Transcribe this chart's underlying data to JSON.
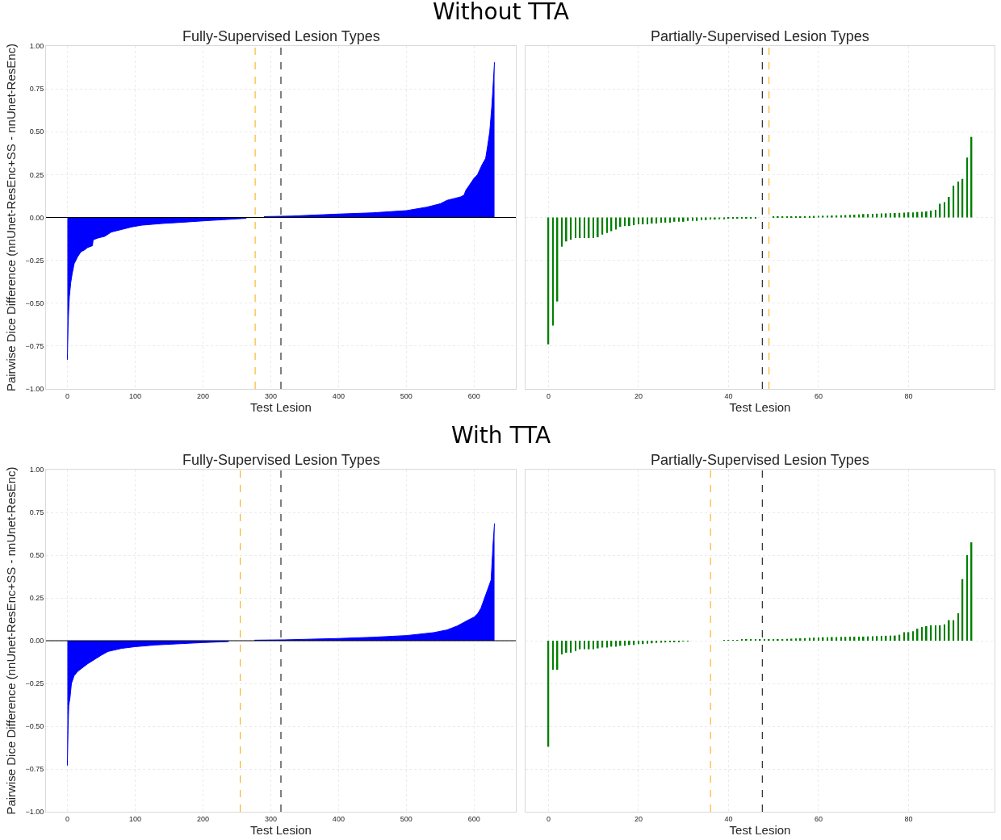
{
  "chart_data": [
    {
      "type": "area",
      "title": "Fully-Supervised Lesion Types",
      "xlabel": "Test Lesion",
      "ylabel": "Pairwise Dice Difference (nnUnet-ResEnc+SS - nnUnet-ResEnc)",
      "annotations": [
        "Without TTA"
      ],
      "series": [
        {
          "color": "#0000ff",
          "x": [
            0,
            1,
            2,
            3,
            5,
            7,
            10,
            15,
            20,
            25,
            30,
            37,
            38,
            45,
            55,
            65,
            80,
            95,
            110,
            140,
            170,
            200,
            230,
            250,
            264
          ],
          "values": [
            -0.83,
            -0.645,
            -0.53,
            -0.46,
            -0.38,
            -0.33,
            -0.27,
            -0.23,
            -0.2,
            -0.19,
            -0.175,
            -0.165,
            -0.13,
            -0.12,
            -0.11,
            -0.085,
            -0.07,
            -0.055,
            -0.045,
            -0.035,
            -0.028,
            -0.02,
            -0.013,
            -0.008,
            -0.005
          ]
        },
        {
          "color": "#0000ff",
          "x": [
            290,
            330,
            400,
            450,
            500,
            530,
            550,
            560,
            570,
            580,
            585,
            588,
            595,
            600,
            605,
            612,
            617,
            620,
            623,
            626,
            628,
            630
          ],
          "values": [
            0.005,
            0.008,
            0.02,
            0.027,
            0.04,
            0.06,
            0.08,
            0.1,
            0.11,
            0.12,
            0.13,
            0.16,
            0.2,
            0.23,
            0.25,
            0.31,
            0.345,
            0.42,
            0.5,
            0.645,
            0.77,
            0.905
          ]
        }
      ],
      "xlim": [
        -31.5,
        661.5
      ],
      "xticks": [
        0,
        100,
        200,
        300,
        400,
        500,
        600
      ],
      "ylim": [
        -1,
        1
      ],
      "yticks": [
        {
          "value": -1,
          "label": "−1.00"
        },
        {
          "value": -0.75,
          "label": "−0.75"
        },
        {
          "value": -0.5,
          "label": "−0.50"
        },
        {
          "value": -0.25,
          "label": "−0.25"
        },
        {
          "value": 0,
          "label": "0.00"
        },
        {
          "value": 0.25,
          "label": "0.25"
        },
        {
          "value": 0.5,
          "label": "0.50"
        },
        {
          "value": 0.75,
          "label": "0.75"
        },
        {
          "value": 1,
          "label": "1.00"
        }
      ],
      "grid": true,
      "ref_lines": [
        {
          "axis": "y",
          "value": 0,
          "color": "#000000",
          "line_style": "solid"
        },
        {
          "axis": "x",
          "value": 277,
          "color": "#ffa500",
          "line_style": "dashed"
        },
        {
          "axis": "x",
          "value": 315,
          "color": "#000000",
          "line_style": "dashed"
        }
      ]
    },
    {
      "type": "bar",
      "title": "Partially-Supervised Lesion Types",
      "xlabel": "Test Lesion",
      "series": [
        {
          "color": "#008000",
          "values": [
            -0.74,
            -0.63,
            -0.49,
            -0.17,
            -0.14,
            -0.13,
            -0.12,
            -0.12,
            -0.12,
            -0.12,
            -0.12,
            -0.115,
            -0.1,
            -0.09,
            -0.08,
            -0.07,
            -0.055,
            -0.05,
            -0.05,
            -0.045,
            -0.04,
            -0.04,
            -0.04,
            -0.035,
            -0.035,
            -0.03,
            -0.03,
            -0.03,
            -0.025,
            -0.025,
            -0.025,
            -0.02,
            -0.02,
            -0.02,
            -0.015,
            -0.015,
            -0.012,
            -0.012,
            -0.01,
            -0.01,
            -0.008,
            -0.008,
            -0.006,
            -0.006,
            -0.005,
            -0.004,
            -0.003,
            null,
            null,
            null,
            0.003,
            0.004,
            0.005,
            0.005,
            0.006,
            0.006,
            0.007,
            0.008,
            0.008,
            0.009,
            0.01,
            0.01,
            0.011,
            0.011,
            0.012,
            0.013,
            0.014,
            0.015,
            0.016,
            0.018,
            0.02,
            0.02,
            0.021,
            0.022,
            0.023,
            0.024,
            0.025,
            0.026,
            0.027,
            0.028,
            0.03,
            0.03,
            0.032,
            0.033,
            0.035,
            0.04,
            0.045,
            0.08,
            0.09,
            0.12,
            0.185,
            0.21,
            0.225,
            0.35,
            0.47
          ]
        }
      ],
      "x": [
        0,
        1,
        2,
        3,
        4,
        5,
        6,
        7,
        8,
        9,
        10,
        11,
        12,
        13,
        14,
        15,
        16,
        17,
        18,
        19,
        20,
        21,
        22,
        23,
        24,
        25,
        26,
        27,
        28,
        29,
        30,
        31,
        32,
        33,
        34,
        35,
        36,
        37,
        38,
        39,
        40,
        41,
        42,
        43,
        44,
        45,
        46,
        47,
        48,
        49,
        50,
        51,
        52,
        53,
        54,
        55,
        56,
        57,
        58,
        59,
        60,
        61,
        62,
        63,
        64,
        65,
        66,
        67,
        68,
        69,
        70,
        71,
        72,
        73,
        74,
        75,
        76,
        77,
        78,
        79,
        80,
        81,
        82,
        83,
        84,
        85,
        86,
        87,
        88,
        89,
        90,
        91,
        92,
        93,
        94
      ],
      "xlim": [
        -5.1,
        99.1
      ],
      "xticks": [
        0,
        20,
        40,
        60,
        80
      ],
      "ylim": [
        -1,
        1
      ],
      "yticks": [
        -1,
        -0.75,
        -0.5,
        -0.25,
        0,
        0.25,
        0.5,
        0.75,
        1
      ],
      "tick_labels": "x",
      "grid": true,
      "ref_lines": [
        {
          "axis": "x",
          "value": 47.5,
          "color": "#000000",
          "line_style": "dashed"
        },
        {
          "axis": "x",
          "value": 49,
          "color": "#ffa500",
          "line_style": "dashed"
        }
      ]
    },
    {
      "type": "area",
      "title": "Fully-Supervised Lesion Types",
      "xlabel": "Test Lesion",
      "ylabel": "Pairwise Dice Difference (nnUnet-ResEnc+SS - nnUnet-ResEnc)",
      "annotations": [
        "With TTA"
      ],
      "series": [
        {
          "color": "#0000ff",
          "x": [
            0,
            1,
            2,
            4,
            6,
            10,
            15,
            20,
            30,
            40,
            50,
            60,
            80,
            100,
            130,
            160,
            200,
            238
          ],
          "values": [
            -0.73,
            -0.52,
            -0.38,
            -0.33,
            -0.25,
            -0.205,
            -0.18,
            -0.165,
            -0.135,
            -0.11,
            -0.085,
            -0.063,
            -0.045,
            -0.035,
            -0.025,
            -0.019,
            -0.011,
            -0.005
          ]
        },
        {
          "color": "#0000ff",
          "x": [
            276,
            320,
            400,
            450,
            500,
            540,
            560,
            575,
            590,
            600,
            605,
            610,
            615,
            620,
            625,
            628,
            630
          ],
          "values": [
            0.003,
            0.005,
            0.013,
            0.02,
            0.03,
            0.047,
            0.063,
            0.086,
            0.118,
            0.138,
            0.157,
            0.19,
            0.245,
            0.3,
            0.355,
            0.57,
            0.685
          ]
        }
      ],
      "xlim": [
        -31.5,
        661.5
      ],
      "xticks": [
        0,
        100,
        200,
        300,
        400,
        500,
        600
      ],
      "ylim": [
        -1,
        1
      ],
      "yticks": [
        {
          "value": -1,
          "label": "−1.00"
        },
        {
          "value": -0.75,
          "label": "−0.75"
        },
        {
          "value": -0.5,
          "label": "−0.50"
        },
        {
          "value": -0.25,
          "label": "−0.25"
        },
        {
          "value": 0,
          "label": "0.00"
        },
        {
          "value": 0.25,
          "label": "0.25"
        },
        {
          "value": 0.5,
          "label": "0.50"
        },
        {
          "value": 0.75,
          "label": "0.75"
        },
        {
          "value": 1,
          "label": "1.00"
        }
      ],
      "grid": true,
      "ref_lines": [
        {
          "axis": "y",
          "value": 0,
          "color": "#000000",
          "line_style": "solid"
        },
        {
          "axis": "x",
          "value": 255,
          "color": "#ffa500",
          "line_style": "dashed"
        },
        {
          "axis": "x",
          "value": 315,
          "color": "#000000",
          "line_style": "dashed"
        }
      ]
    },
    {
      "type": "bar",
      "title": "Partially-Supervised Lesion Types",
      "xlabel": "Test Lesion",
      "series": [
        {
          "color": "#008000",
          "values": [
            -0.62,
            -0.17,
            -0.17,
            -0.08,
            -0.07,
            -0.07,
            -0.06,
            -0.05,
            -0.05,
            -0.05,
            -0.05,
            -0.045,
            -0.04,
            -0.04,
            -0.035,
            -0.035,
            -0.03,
            -0.03,
            -0.025,
            -0.025,
            -0.02,
            -0.02,
            -0.018,
            -0.015,
            -0.013,
            -0.012,
            -0.01,
            -0.008,
            -0.007,
            -0.005,
            -0.004,
            -0.003,
            null,
            null,
            null,
            null,
            null,
            null,
            null,
            0.003,
            0.003,
            0.004,
            0.004,
            0.005,
            0.005,
            0.006,
            0.006,
            0.007,
            0.007,
            0.008,
            0.008,
            0.009,
            0.01,
            0.011,
            0.012,
            0.013,
            0.014,
            0.015,
            0.016,
            0.018,
            0.019,
            0.02,
            0.02,
            0.021,
            0.021,
            0.022,
            0.022,
            0.023,
            0.023,
            0.024,
            0.024,
            0.025,
            0.026,
            0.027,
            0.028,
            0.029,
            0.03,
            0.03,
            0.035,
            0.05,
            0.05,
            0.055,
            0.07,
            0.08,
            0.085,
            0.09,
            0.09,
            0.09,
            0.095,
            0.12,
            0.12,
            0.16,
            0.36,
            0.5,
            0.575
          ]
        }
      ],
      "x": [
        0,
        1,
        2,
        3,
        4,
        5,
        6,
        7,
        8,
        9,
        10,
        11,
        12,
        13,
        14,
        15,
        16,
        17,
        18,
        19,
        20,
        21,
        22,
        23,
        24,
        25,
        26,
        27,
        28,
        29,
        30,
        31,
        32,
        33,
        34,
        35,
        36,
        37,
        38,
        39,
        40,
        41,
        42,
        43,
        44,
        45,
        46,
        47,
        48,
        49,
        50,
        51,
        52,
        53,
        54,
        55,
        56,
        57,
        58,
        59,
        60,
        61,
        62,
        63,
        64,
        65,
        66,
        67,
        68,
        69,
        70,
        71,
        72,
        73,
        74,
        75,
        76,
        77,
        78,
        79,
        80,
        81,
        82,
        83,
        84,
        85,
        86,
        87,
        88,
        89,
        90,
        91,
        92,
        93,
        94
      ],
      "xlim": [
        -5.1,
        99.1
      ],
      "xticks": [
        0,
        20,
        40,
        60,
        80
      ],
      "ylim": [
        -1,
        1
      ],
      "yticks": [
        -1,
        -0.75,
        -0.5,
        -0.25,
        0,
        0.25,
        0.5,
        0.75,
        1
      ],
      "tick_labels": "x",
      "grid": true,
      "ref_lines": [
        {
          "axis": "x",
          "value": 36,
          "color": "#ffa500",
          "line_style": "dashed"
        },
        {
          "axis": "x",
          "value": 47.5,
          "color": "#000000",
          "line_style": "dashed"
        }
      ]
    }
  ]
}
